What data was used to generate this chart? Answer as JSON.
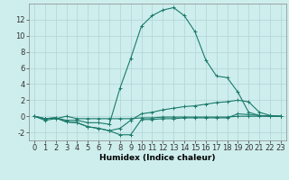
{
  "x": [
    0,
    1,
    2,
    3,
    4,
    5,
    6,
    7,
    8,
    9,
    10,
    11,
    12,
    13,
    14,
    15,
    16,
    17,
    18,
    19,
    20,
    21,
    22,
    23
  ],
  "series": [
    [
      0.0,
      -0.5,
      -0.3,
      0.0,
      -0.3,
      -0.3,
      -0.3,
      -0.3,
      -0.3,
      -0.3,
      -0.2,
      -0.2,
      -0.1,
      -0.1,
      -0.1,
      -0.1,
      -0.1,
      -0.1,
      -0.1,
      0.0,
      0.0,
      0.0,
      0.0,
      0.0
    ],
    [
      0.0,
      -0.3,
      -0.2,
      -0.7,
      -0.8,
      -1.3,
      -1.5,
      -1.8,
      -1.5,
      -0.5,
      0.3,
      0.5,
      0.8,
      1.0,
      1.2,
      1.3,
      1.5,
      1.7,
      1.8,
      2.0,
      1.8,
      0.5,
      0.1,
      0.0
    ],
    [
      0.0,
      -0.3,
      -0.2,
      -0.7,
      -0.8,
      -1.3,
      -1.5,
      -1.8,
      -2.3,
      -2.3,
      -0.4,
      -0.4,
      -0.3,
      -0.3,
      -0.2,
      -0.2,
      -0.2,
      -0.2,
      -0.2,
      0.3,
      0.2,
      0.1,
      0.0,
      0.0
    ],
    [
      0.0,
      -0.3,
      -0.2,
      -0.5,
      -0.5,
      -0.8,
      -0.8,
      -1.0,
      3.5,
      7.2,
      11.2,
      12.5,
      13.2,
      13.5,
      12.5,
      10.5,
      7.0,
      5.0,
      4.8,
      3.0,
      0.5,
      0.1,
      0.0,
      0.0
    ]
  ],
  "line_color": "#1a7a6a",
  "bg_color": "#ceeeed",
  "grid_major_color": "#b0d4d4",
  "grid_minor_color": "#c0e0e0",
  "xlabel": "Humidex (Indice chaleur)",
  "ylim": [
    -3,
    14
  ],
  "xlim": [
    -0.5,
    23.5
  ],
  "yticks": [
    -2,
    0,
    2,
    4,
    6,
    8,
    10,
    12
  ],
  "xticks": [
    0,
    1,
    2,
    3,
    4,
    5,
    6,
    7,
    8,
    9,
    10,
    11,
    12,
    13,
    14,
    15,
    16,
    17,
    18,
    19,
    20,
    21,
    22,
    23
  ],
  "xlabel_fontsize": 6.5,
  "tick_fontsize": 6,
  "title_fontsize": 7
}
